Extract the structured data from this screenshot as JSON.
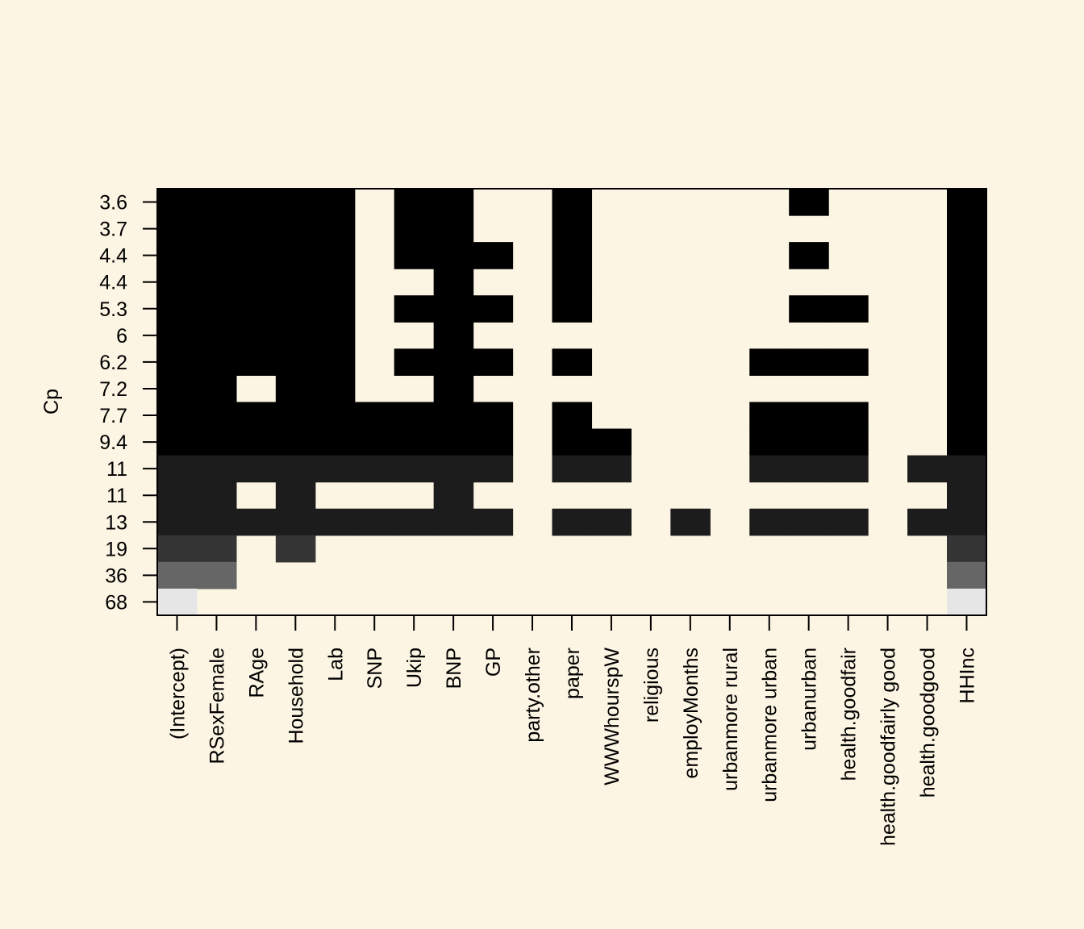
{
  "chart_data": {
    "type": "heatmap",
    "background": "#FDF5E3",
    "ylabel": "Cp",
    "columns": [
      "(Intercept)",
      "RSexFemale",
      "RAge",
      "Household",
      "Lab",
      "SNP",
      "Ukip",
      "BNP",
      "GP",
      "party.other",
      "paper",
      "WWWhourspW",
      "religious",
      "employMonths",
      "urbanmore rural",
      "urbanmore urban",
      "urbanurban",
      "health.goodfair",
      "health.goodfairly good",
      "health.goodgood",
      "HHInc"
    ],
    "rows": [
      {
        "label": "3.6",
        "shade": "#000000",
        "included": [
          1,
          1,
          1,
          1,
          1,
          0,
          1,
          1,
          0,
          0,
          1,
          0,
          0,
          0,
          0,
          0,
          1,
          0,
          0,
          0,
          1
        ]
      },
      {
        "label": "3.7",
        "shade": "#000000",
        "included": [
          1,
          1,
          1,
          1,
          1,
          0,
          1,
          1,
          0,
          0,
          1,
          0,
          0,
          0,
          0,
          0,
          0,
          0,
          0,
          0,
          1
        ]
      },
      {
        "label": "4.4",
        "shade": "#000000",
        "included": [
          1,
          1,
          1,
          1,
          1,
          0,
          1,
          1,
          1,
          0,
          1,
          0,
          0,
          0,
          0,
          0,
          1,
          0,
          0,
          0,
          1
        ]
      },
      {
        "label": "4.4",
        "shade": "#000000",
        "included": [
          1,
          1,
          1,
          1,
          1,
          0,
          0,
          1,
          0,
          0,
          1,
          0,
          0,
          0,
          0,
          0,
          0,
          0,
          0,
          0,
          1
        ]
      },
      {
        "label": "5.3",
        "shade": "#000000",
        "included": [
          1,
          1,
          1,
          1,
          1,
          0,
          1,
          1,
          1,
          0,
          1,
          0,
          0,
          0,
          0,
          0,
          1,
          1,
          0,
          0,
          1
        ]
      },
      {
        "label": "6",
        "shade": "#000000",
        "included": [
          1,
          1,
          1,
          1,
          1,
          0,
          0,
          1,
          0,
          0,
          0,
          0,
          0,
          0,
          0,
          0,
          0,
          0,
          0,
          0,
          1
        ]
      },
      {
        "label": "6.2",
        "shade": "#000000",
        "included": [
          1,
          1,
          1,
          1,
          1,
          0,
          1,
          1,
          1,
          0,
          1,
          0,
          0,
          0,
          0,
          1,
          1,
          1,
          0,
          0,
          1
        ]
      },
      {
        "label": "7.2",
        "shade": "#000000",
        "included": [
          1,
          1,
          0,
          1,
          1,
          0,
          0,
          1,
          0,
          0,
          0,
          0,
          0,
          0,
          0,
          0,
          0,
          0,
          0,
          0,
          1
        ]
      },
      {
        "label": "7.7",
        "shade": "#000000",
        "included": [
          1,
          1,
          1,
          1,
          1,
          1,
          1,
          1,
          1,
          0,
          1,
          0,
          0,
          0,
          0,
          1,
          1,
          1,
          0,
          0,
          1
        ]
      },
      {
        "label": "9.4",
        "shade": "#000000",
        "included": [
          1,
          1,
          1,
          1,
          1,
          1,
          1,
          1,
          1,
          0,
          1,
          1,
          0,
          0,
          0,
          1,
          1,
          1,
          0,
          0,
          1
        ]
      },
      {
        "label": "11",
        "shade": "#1C1C1C",
        "included": [
          1,
          1,
          1,
          1,
          1,
          1,
          1,
          1,
          1,
          0,
          1,
          1,
          0,
          0,
          0,
          1,
          1,
          1,
          0,
          1,
          1
        ]
      },
      {
        "label": "11",
        "shade": "#1C1C1C",
        "included": [
          1,
          1,
          0,
          1,
          0,
          0,
          0,
          1,
          0,
          0,
          0,
          0,
          0,
          0,
          0,
          0,
          0,
          0,
          0,
          0,
          1
        ]
      },
      {
        "label": "13",
        "shade": "#1C1C1C",
        "included": [
          1,
          1,
          1,
          1,
          1,
          1,
          1,
          1,
          1,
          0,
          1,
          1,
          0,
          1,
          0,
          1,
          1,
          1,
          0,
          1,
          1
        ]
      },
      {
        "label": "19",
        "shade": "#353535",
        "included": [
          1,
          1,
          0,
          1,
          0,
          0,
          0,
          0,
          0,
          0,
          0,
          0,
          0,
          0,
          0,
          0,
          0,
          0,
          0,
          0,
          1
        ]
      },
      {
        "label": "36",
        "shade": "#666666",
        "included": [
          1,
          1,
          0,
          0,
          0,
          0,
          0,
          0,
          0,
          0,
          0,
          0,
          0,
          0,
          0,
          0,
          0,
          0,
          0,
          0,
          1
        ]
      },
      {
        "label": "68",
        "shade": "#E6E6E6",
        "included": [
          1,
          0,
          0,
          0,
          0,
          0,
          0,
          0,
          0,
          0,
          0,
          0,
          0,
          0,
          0,
          0,
          0,
          0,
          0,
          0,
          1
        ]
      }
    ]
  }
}
